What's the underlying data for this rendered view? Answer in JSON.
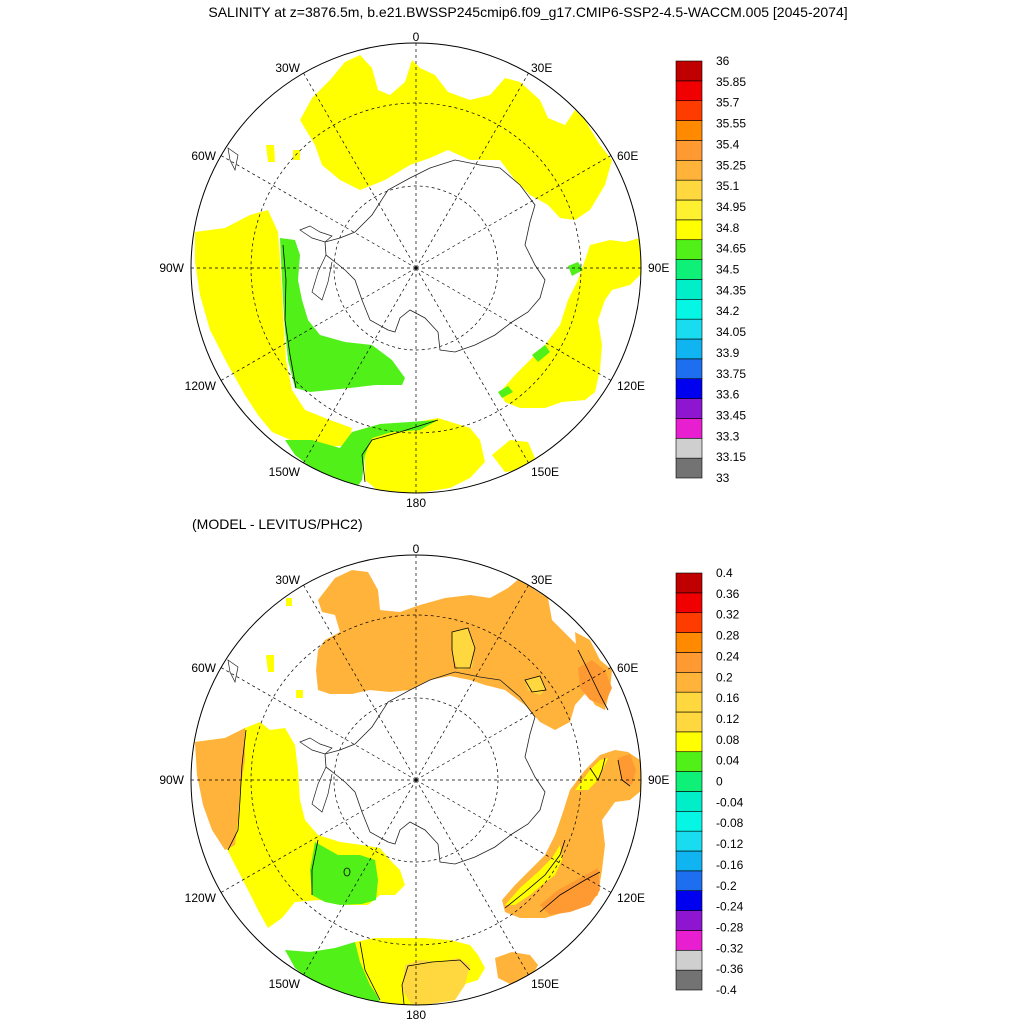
{
  "title": "SALINITY at z=3876.5m, b.e21.BWSSP245cmip6.f09_g17.CMIP6-SSP2-4.5-WACCM.005 [2045-2074]",
  "diff_title": "(MODEL - LEVITUS/PHC2)",
  "longitude_labels": {
    "top": "0",
    "bottom": "180",
    "left": "90W",
    "right": "90E",
    "upper_left_1": "30W",
    "upper_left_2": "60W",
    "upper_right_1": "30E",
    "upper_right_2": "60E",
    "lower_left_1": "120W",
    "lower_left_2": "150W",
    "lower_right_1": "120E",
    "lower_right_2": "150E"
  },
  "colors": {
    "salinity": [
      "#737373",
      "#cfcfcf",
      "#e81ed1",
      "#8f16d0",
      "#0000f0",
      "#1e6ef0",
      "#0fb4f0",
      "#19dcf0",
      "#06f6e6",
      "#00eec8",
      "#0ff078",
      "#50f018",
      "#ffff00",
      "#fff030",
      "#ffd840",
      "#ffb33a",
      "#ff9a32",
      "#ff8a00",
      "#ff3c00",
      "#f00000",
      "#c00000"
    ],
    "difference": [
      "#737373",
      "#cfcfcf",
      "#e81ed1",
      "#8f16d0",
      "#0000f0",
      "#1e6ef0",
      "#0fb4f0",
      "#19dcf0",
      "#06f6e6",
      "#00eec8",
      "#0ff078",
      "#50f018",
      "#ffff00",
      "#ffd840",
      "#ffd840",
      "#ffb33a",
      "#ff9a32",
      "#ff8a00",
      "#ff3c00",
      "#f00000",
      "#c00000"
    ],
    "fill_green": "#50f018",
    "fill_yellow": "#ffff00",
    "fill_orange_light": "#ffb33a",
    "fill_orange": "#ff9a32",
    "fill_yellow_orange": "#ffd840"
  },
  "chart_data": [
    {
      "type": "heatmap",
      "panel": "salinity",
      "title": "SALINITY at z=3876.5m, b.e21.BWSSP245cmip6.f09_g17.CMIP6-SSP2-4.5-WACCM.005 [2045-2074]",
      "projection": "south polar stereographic",
      "colorbar_levels": [
        "36",
        "35.85",
        "35.7",
        "35.55",
        "35.4",
        "35.25",
        "35.1",
        "34.95",
        "34.8",
        "34.65",
        "34.5",
        "34.35",
        "34.2",
        "34.05",
        "33.9",
        "33.75",
        "33.6",
        "33.45",
        "33.3",
        "33.15",
        "33"
      ],
      "color_bins": 21,
      "value_range": [
        33,
        36
      ]
    },
    {
      "type": "heatmap",
      "panel": "difference",
      "title": "(MODEL - LEVITUS/PHC2)",
      "projection": "south polar stereographic",
      "colorbar_levels": [
        "0.4",
        "0.36",
        "0.32",
        "0.28",
        "0.24",
        "0.2",
        "0.16",
        "0.12",
        "0.08",
        "0.04",
        "0",
        "-0.04",
        "-0.08",
        "-0.12",
        "-0.16",
        "-0.2",
        "-0.24",
        "-0.28",
        "-0.32",
        "-0.36",
        "-0.4"
      ],
      "color_bins": 21,
      "value_range": [
        -0.4,
        0.4
      ]
    }
  ]
}
